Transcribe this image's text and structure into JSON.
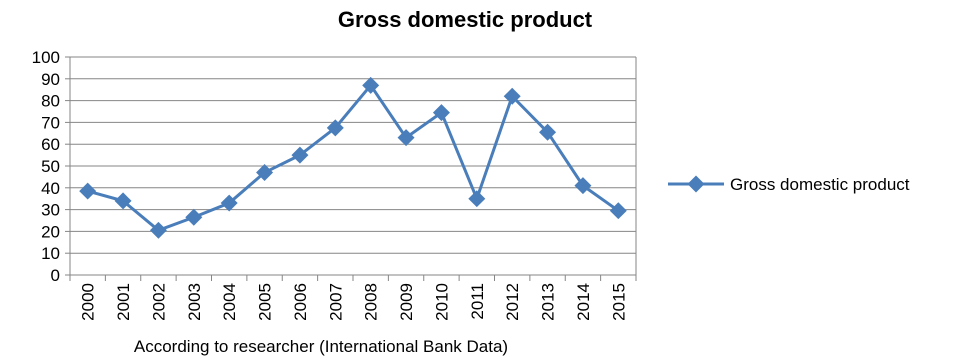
{
  "chart_data": {
    "type": "line",
    "title": "Gross domestic product",
    "xlabel": "According to researcher (International Bank Data)",
    "ylabel": "",
    "ylim": [
      0,
      100
    ],
    "yticks": [
      "0",
      "10",
      "20",
      "30",
      "40",
      "50",
      "60",
      "70",
      "80",
      "90",
      "100"
    ],
    "categories": [
      "2000",
      "2001",
      "2002",
      "2003",
      "2004",
      "2005",
      "2006",
      "2007",
      "2008",
      "2009",
      "2010",
      "2011",
      "2012",
      "2013",
      "2014",
      "2015"
    ],
    "series": [
      {
        "name": "Gross domestic product",
        "values": [
          38.5,
          34,
          20.5,
          26.5,
          33,
          47,
          55,
          67.5,
          87,
          63,
          74.5,
          35,
          82,
          65.5,
          41,
          29.5
        ],
        "color": "#4a7ebb"
      }
    ],
    "grid": true,
    "legend": "right"
  }
}
